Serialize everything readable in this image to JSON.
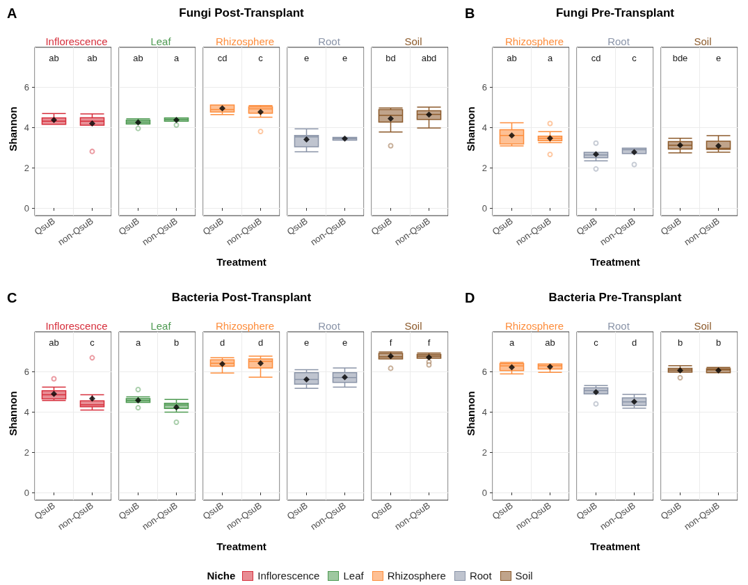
{
  "chart_data": [
    {
      "type": "box",
      "title": "Fungi Post-Transplant",
      "xlabel": "Treatment",
      "ylabel": "Shannon",
      "annotations": [
        "ab",
        "ab",
        "ab",
        "a",
        "cd",
        "c",
        "e",
        "e",
        "bd",
        "abd",
        "A"
      ],
      "categories": [
        "QsuB",
        "non-QsuB",
        "QsuB",
        "non-QsuB",
        "QsuB",
        "non-QsuB",
        "QsuB",
        "non-QsuB",
        "QsuB",
        "non-QsuB"
      ],
      "series": [
        {
          "name": "Inflorescence",
          "color": "#d62f3c",
          "boxes": [
            {
              "low": 4.15,
              "q1": 4.15,
              "median": 4.31,
              "q3": 4.47,
              "high": 4.69,
              "mean": 4.37
            },
            {
              "low": 4.11,
              "q1": 4.11,
              "median": 4.31,
              "q3": 4.48,
              "high": 4.67,
              "mean": 4.2,
              "outliers": [
                2.81
              ]
            },
            null,
            null,
            null,
            null,
            null,
            null,
            null,
            null
          ]
        },
        {
          "name": "Leaf",
          "color": "#4e9a52",
          "boxes": [
            null,
            null,
            {
              "low": 4.17,
              "q1": 4.17,
              "median": 4.27,
              "q3": 4.36,
              "high": 4.43,
              "mean": 4.25,
              "outliers": [
                3.95
              ]
            },
            {
              "low": 4.31,
              "q1": 4.31,
              "median": 4.4,
              "q3": 4.47,
              "high": 4.47,
              "mean": 4.37,
              "outliers": [
                4.12
              ]
            },
            null,
            null,
            null,
            null,
            null,
            null
          ]
        },
        {
          "name": "Rhizosphere",
          "color": "#fd8d3c",
          "boxes": [
            null,
            null,
            null,
            null,
            {
              "low": 4.64,
              "q1": 4.77,
              "median": 4.89,
              "q3": 5.11,
              "high": 5.11,
              "mean": 4.95
            },
            {
              "low": 4.51,
              "q1": 4.71,
              "median": 4.92,
              "q3": 5.03,
              "high": 5.09,
              "mean": 4.77,
              "outliers": [
                3.8
              ]
            },
            null,
            null,
            null,
            null
          ]
        },
        {
          "name": "Root",
          "color": "#8a94a8",
          "boxes": [
            null,
            null,
            null,
            null,
            null,
            null,
            {
              "low": 2.79,
              "q1": 3.04,
              "median": 3.53,
              "q3": 3.6,
              "high": 3.93,
              "mean": 3.4
            },
            {
              "low": 3.37,
              "q1": 3.37,
              "median": 3.45,
              "q3": 3.51,
              "high": 3.51,
              "mean": 3.45
            },
            null,
            null
          ]
        },
        {
          "name": "Soil",
          "color": "#8c5a2b",
          "boxes": [
            null,
            null,
            null,
            null,
            null,
            null,
            null,
            null,
            {
              "low": 3.77,
              "q1": 4.27,
              "median": 4.6,
              "q3": 4.89,
              "high": 4.97,
              "mean": 4.44,
              "outliers": [
                3.09
              ]
            },
            {
              "low": 3.97,
              "q1": 4.4,
              "median": 4.65,
              "q3": 4.83,
              "high": 5.01,
              "mean": 4.64
            }
          ]
        }
      ],
      "ylim": [
        -0.38,
        7.98
      ],
      "yticks": [
        0,
        2,
        4,
        6
      ],
      "grid": true,
      "legend": "bottom",
      "legend_title": "Niche"
    },
    {
      "type": "box",
      "title": "Fungi Pre-Transplant",
      "xlabel": "Treatment",
      "ylabel": "Shannon",
      "annotations": [
        "ab",
        "a",
        "cd",
        "c",
        "bde",
        "e",
        "B"
      ],
      "categories": [
        "QsuB",
        "non-QsuB",
        "QsuB",
        "non-QsuB",
        "QsuB",
        "non-QsuB"
      ],
      "series": [
        {
          "name": "Rhizosphere",
          "color": "#fd8d3c",
          "boxes": [
            {
              "low": 3.08,
              "q1": 3.18,
              "median": 3.6,
              "q3": 3.89,
              "high": 4.23,
              "mean": 3.6
            },
            {
              "low": 3.25,
              "q1": 3.34,
              "median": 3.46,
              "q3": 3.57,
              "high": 3.79,
              "mean": 3.46,
              "outliers": [
                4.2,
                2.66
              ]
            },
            null,
            null,
            null,
            null
          ]
        },
        {
          "name": "Root",
          "color": "#8a94a8",
          "boxes": [
            null,
            null,
            {
              "low": 2.34,
              "q1": 2.5,
              "median": 2.63,
              "q3": 2.76,
              "high": 2.76,
              "mean": 2.67,
              "outliers": [
                3.22,
                1.94
              ]
            },
            {
              "low": 2.7,
              "q1": 2.7,
              "median": 2.89,
              "q3": 2.97,
              "high": 2.97,
              "mean": 2.77,
              "outliers": [
                2.16
              ]
            },
            null,
            null
          ]
        },
        {
          "name": "Soil",
          "color": "#8c5a2b",
          "boxes": [
            null,
            null,
            null,
            null,
            {
              "low": 2.74,
              "q1": 2.93,
              "median": 3.12,
              "q3": 3.3,
              "high": 3.46,
              "mean": 3.12
            },
            {
              "low": 2.77,
              "q1": 2.91,
              "median": 2.96,
              "q3": 3.32,
              "high": 3.59,
              "mean": 3.08
            }
          ]
        }
      ],
      "ylim": [
        -0.38,
        7.98
      ],
      "yticks": [
        0,
        2,
        4,
        6
      ],
      "grid": true
    },
    {
      "type": "box",
      "title": "Bacteria Post-Transplant",
      "xlabel": "Treatment",
      "ylabel": "Shannon",
      "annotations": [
        "ab",
        "c",
        "a",
        "b",
        "d",
        "d",
        "e",
        "e",
        "f",
        "f",
        "C"
      ],
      "categories": [
        "QsuB",
        "non-QsuB",
        "QsuB",
        "non-QsuB",
        "QsuB",
        "non-QsuB",
        "QsuB",
        "non-QsuB",
        "QsuB",
        "non-QsuB"
      ],
      "series": [
        {
          "name": "Inflorescence",
          "color": "#d62f3c",
          "boxes": [
            {
              "low": 4.57,
              "q1": 4.65,
              "median": 4.85,
              "q3": 5.05,
              "high": 5.23,
              "mean": 4.9,
              "outliers": [
                5.65
              ]
            },
            {
              "low": 4.09,
              "q1": 4.26,
              "median": 4.35,
              "q3": 4.55,
              "high": 4.85,
              "mean": 4.66,
              "outliers": [
                6.69
              ]
            },
            null,
            null,
            null,
            null,
            null,
            null,
            null,
            null
          ]
        },
        {
          "name": "Leaf",
          "color": "#4e9a52",
          "boxes": [
            null,
            null,
            {
              "low": 4.47,
              "q1": 4.47,
              "median": 4.57,
              "q3": 4.66,
              "high": 4.75,
              "mean": 4.58,
              "outliers": [
                5.11,
                4.21
              ]
            },
            {
              "low": 3.99,
              "q1": 4.17,
              "median": 4.34,
              "q3": 4.43,
              "high": 4.62,
              "mean": 4.23,
              "outliers": [
                3.49
              ]
            },
            null,
            null,
            null,
            null,
            null,
            null
          ]
        },
        {
          "name": "Rhizosphere",
          "color": "#fd8d3c",
          "boxes": [
            null,
            null,
            null,
            null,
            {
              "low": 5.93,
              "q1": 6.27,
              "median": 6.42,
              "q3": 6.59,
              "high": 6.69,
              "mean": 6.38
            },
            {
              "low": 5.73,
              "q1": 6.18,
              "median": 6.51,
              "q3": 6.63,
              "high": 6.77,
              "mean": 6.42
            },
            null,
            null,
            null,
            null
          ]
        },
        {
          "name": "Root",
          "color": "#8a94a8",
          "boxes": [
            null,
            null,
            null,
            null,
            null,
            null,
            {
              "low": 5.17,
              "q1": 5.38,
              "median": 5.61,
              "q3": 5.95,
              "high": 6.1,
              "mean": 5.61
            },
            {
              "low": 5.23,
              "q1": 5.47,
              "median": 5.71,
              "q3": 5.95,
              "high": 6.18,
              "mean": 5.73
            },
            null,
            null
          ]
        },
        {
          "name": "Soil",
          "color": "#8c5a2b",
          "boxes": [
            null,
            null,
            null,
            null,
            null,
            null,
            null,
            null,
            {
              "low": 6.63,
              "q1": 6.63,
              "median": 6.74,
              "q3": 6.91,
              "high": 6.98,
              "mean": 6.77,
              "outliers": [
                6.17
              ]
            },
            {
              "low": 6.67,
              "q1": 6.67,
              "median": 6.77,
              "q3": 6.86,
              "high": 6.93,
              "mean": 6.71,
              "outliers": [
                6.49,
                6.34
              ]
            }
          ]
        }
      ],
      "ylim": [
        -0.38,
        7.98
      ],
      "yticks": [
        0,
        2,
        4,
        6
      ],
      "grid": true
    },
    {
      "type": "box",
      "title": "Bacteria Pre-Transplant",
      "xlabel": "Treatment",
      "ylabel": "Shannon",
      "annotations": [
        "a",
        "ab",
        "c",
        "d",
        "b",
        "b",
        "D"
      ],
      "categories": [
        "QsuB",
        "non-QsuB",
        "QsuB",
        "non-QsuB",
        "QsuB",
        "non-QsuB"
      ],
      "series": [
        {
          "name": "Rhizosphere",
          "color": "#fd8d3c",
          "boxes": [
            {
              "low": 5.89,
              "q1": 6.05,
              "median": 6.29,
              "q3": 6.4,
              "high": 6.46,
              "mean": 6.22
            },
            {
              "low": 5.97,
              "q1": 6.13,
              "median": 6.3,
              "q3": 6.38,
              "high": 6.38,
              "mean": 6.24
            },
            null,
            null,
            null,
            null
          ]
        },
        {
          "name": "Root",
          "color": "#8a94a8",
          "boxes": [
            null,
            null,
            {
              "low": 4.9,
              "q1": 4.9,
              "median": 5.06,
              "q3": 5.2,
              "high": 5.31,
              "mean": 4.98,
              "outliers": [
                4.4
              ]
            },
            {
              "low": 4.19,
              "q1": 4.32,
              "median": 4.5,
              "q3": 4.7,
              "high": 4.87,
              "mean": 4.51
            },
            null,
            null
          ]
        },
        {
          "name": "Soil",
          "color": "#8c5a2b",
          "boxes": [
            null,
            null,
            null,
            null,
            {
              "low": 5.98,
              "q1": 5.98,
              "median": 6.08,
              "q3": 6.17,
              "high": 6.3,
              "mean": 6.06,
              "outliers": [
                5.7
              ]
            },
            {
              "low": 5.95,
              "q1": 5.95,
              "median": 6.09,
              "q3": 6.15,
              "high": 6.21,
              "mean": 6.06
            }
          ]
        }
      ],
      "ylim": [
        -0.38,
        7.98
      ],
      "yticks": [
        0,
        2,
        4,
        6
      ],
      "grid": true
    }
  ]
}
